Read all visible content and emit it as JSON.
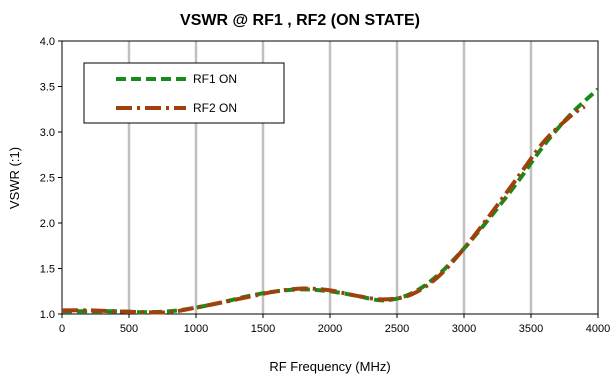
{
  "chart_data": {
    "type": "line",
    "title": "VSWR @ RF1 , RF2 (ON STATE)",
    "xlabel": "RF Frequency (MHz)",
    "ylabel": "VSWR (:1)",
    "xlim": [
      0,
      4000
    ],
    "ylim": [
      1.0,
      4.0
    ],
    "x_ticks": [
      "0",
      "500",
      "1000",
      "1500",
      "2000",
      "2500",
      "3000",
      "3500",
      "4000"
    ],
    "y_ticks": [
      "1.0",
      "1.5",
      "2.0",
      "2.5",
      "3.0",
      "3.5",
      "4.0"
    ],
    "grid": "vertical",
    "legend_position": "top-left",
    "series": [
      {
        "name": "RF1 ON",
        "color": "#1a8a1a",
        "style": "dashed",
        "x": [
          0,
          200,
          400,
          600,
          800,
          1000,
          1200,
          1400,
          1600,
          1800,
          2000,
          2200,
          2400,
          2600,
          2800,
          3000,
          3200,
          3400,
          3600,
          3800,
          4000
        ],
        "y": [
          1.03,
          1.03,
          1.03,
          1.02,
          1.03,
          1.07,
          1.13,
          1.2,
          1.25,
          1.27,
          1.25,
          1.2,
          1.15,
          1.22,
          1.42,
          1.72,
          2.07,
          2.45,
          2.86,
          3.2,
          3.47
        ]
      },
      {
        "name": "RF2 ON",
        "color": "#a0400c",
        "style": "dash-dot",
        "x": [
          0,
          200,
          400,
          600,
          800,
          1000,
          1200,
          1400,
          1600,
          1800,
          2000,
          2200,
          2400,
          2600,
          2800,
          3000,
          3200,
          3400,
          3600,
          3800,
          3900
        ],
        "y": [
          1.04,
          1.04,
          1.03,
          1.02,
          1.02,
          1.07,
          1.13,
          1.19,
          1.25,
          1.28,
          1.26,
          1.2,
          1.16,
          1.21,
          1.4,
          1.72,
          2.1,
          2.5,
          2.9,
          3.18,
          3.28
        ]
      }
    ]
  }
}
